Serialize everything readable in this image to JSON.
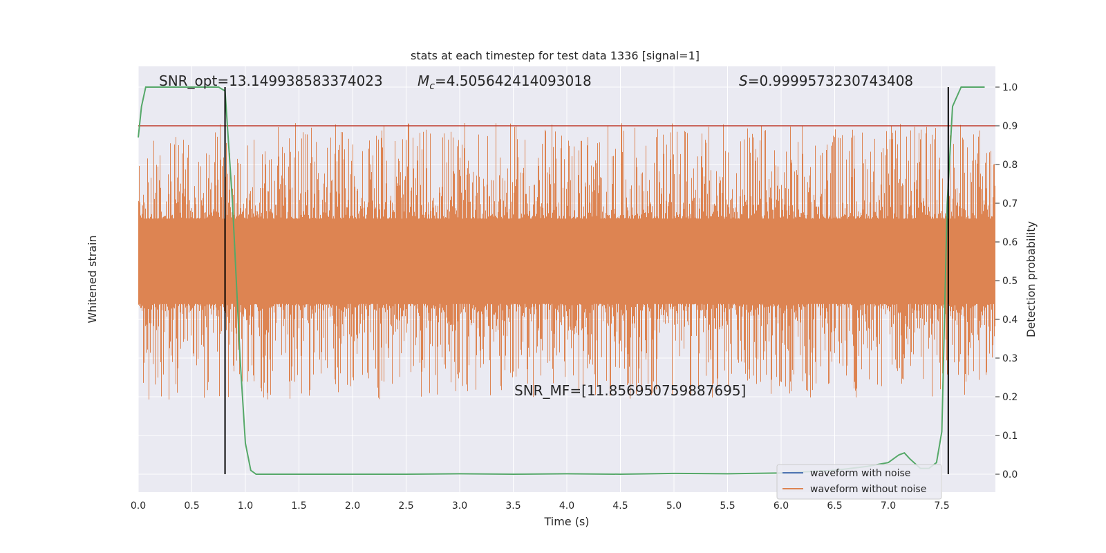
{
  "chart_data": {
    "type": "line",
    "title": "stats at each timestep for test data 1336 [signal=1]",
    "xlabel": "Time (s)",
    "ylabel_left": "Whitened strain",
    "ylabel_right": "Detection probability",
    "xlim": [
      0,
      8
    ],
    "ylim_right": [
      -0.05,
      1.05
    ],
    "x_ticks": [
      "0.0",
      "0.5",
      "1.0",
      "1.5",
      "2.0",
      "2.5",
      "3.0",
      "3.5",
      "4.0",
      "4.5",
      "5.0",
      "5.5",
      "6.0",
      "6.5",
      "7.0",
      "7.5"
    ],
    "y_ticks_right": [
      "0.0",
      "0.1",
      "0.2",
      "0.3",
      "0.4",
      "0.5",
      "0.6",
      "0.7",
      "0.8",
      "0.9",
      "1.0"
    ],
    "grid": true,
    "legend_position": "lower right",
    "annotations": {
      "snr_opt": "SNR_opt=13.149938583374023",
      "mc_symbol": "M",
      "mc_sub": "c",
      "mc_value": "=4.505642414093018",
      "s_symbol": "S",
      "s_value": "=0.9999573230743408",
      "snr_mf": "SNR_MF=[11.856950759887695]"
    },
    "threshold": {
      "y": 0.9,
      "color": "#c0392b"
    },
    "vertical_markers": [
      0.81,
      7.56
    ],
    "series": [
      {
        "name": "waveform with noise",
        "color": "#4c72b0"
      },
      {
        "name": "waveform without noise",
        "color": "#dd8452"
      }
    ],
    "probability_series": {
      "color": "#55a868",
      "x": [
        0.0,
        0.03,
        0.07,
        0.2,
        0.4,
        0.6,
        0.75,
        0.81,
        0.88,
        0.95,
        1.0,
        1.05,
        1.1,
        1.2,
        1.5,
        2.0,
        2.5,
        3.0,
        3.5,
        4.0,
        4.5,
        5.0,
        5.5,
        6.0,
        6.5,
        6.8,
        7.0,
        7.1,
        7.15,
        7.2,
        7.3,
        7.38,
        7.45,
        7.5,
        7.55,
        7.6,
        7.68,
        7.75,
        7.9
      ],
      "y": [
        0.87,
        0.95,
        1.0,
        1.0,
        1.0,
        1.0,
        1.0,
        0.99,
        0.7,
        0.3,
        0.08,
        0.01,
        0.0,
        0.0,
        0.0,
        0.0,
        0.0,
        0.001,
        0.0,
        0.001,
        0.0,
        0.002,
        0.001,
        0.003,
        0.01,
        0.02,
        0.03,
        0.05,
        0.055,
        0.04,
        0.015,
        0.015,
        0.03,
        0.11,
        0.7,
        0.95,
        1.0,
        1.0,
        1.0
      ]
    },
    "strain_envelope": {
      "center": 0.55,
      "core_half_width": 0.11,
      "spike_max": 0.45
    }
  }
}
